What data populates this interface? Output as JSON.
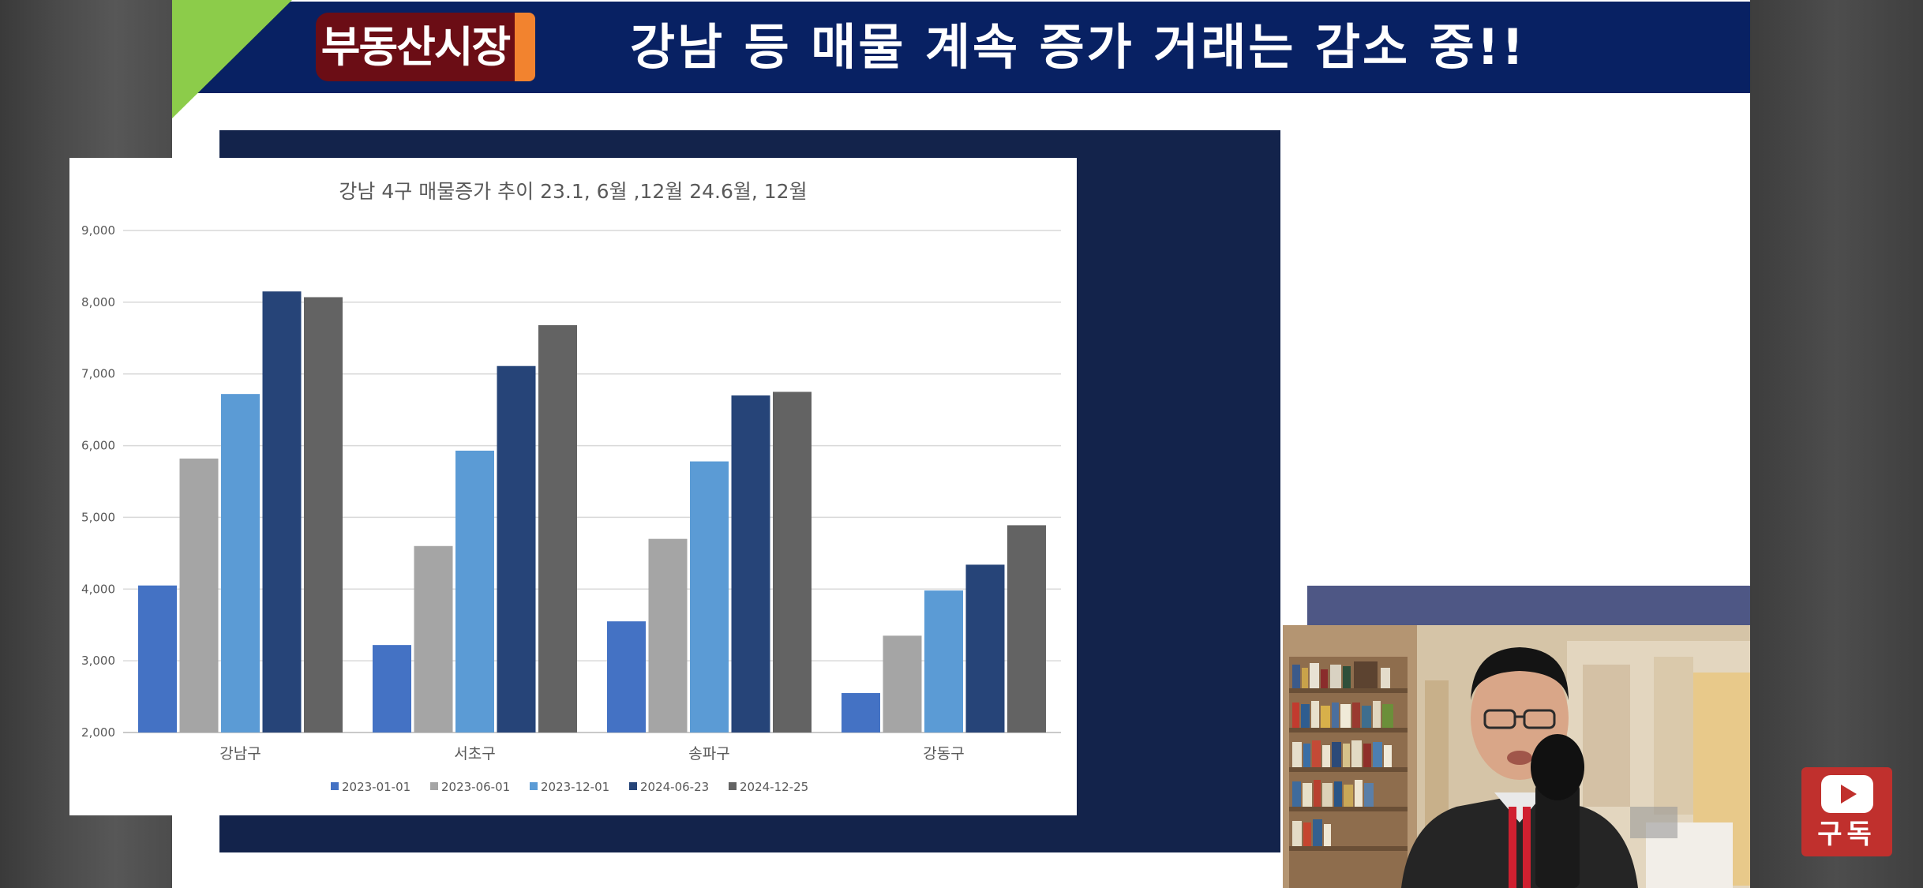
{
  "header": {
    "badge": "부동산시장",
    "headline": "강남 등 매물 계속 증가 거래는 감소 중!!"
  },
  "subscribe": {
    "label": "구독",
    "icon": "play-icon"
  },
  "colors": {
    "header_bg": "#082163",
    "badge_bg": "#6b0d15",
    "badge_accent": "#f2832f",
    "green_corner": "#8ccc4a",
    "chart_frame": "#13234b",
    "subscribe_bg": "#c0302d"
  },
  "chart_data": {
    "type": "bar",
    "title": "강남 4구 매물증가 추이 23.1, 6월 ,12월 24.6월, 12월",
    "categories": [
      "강남구",
      "서초구",
      "송파구",
      "강동구"
    ],
    "series": [
      {
        "name": "2023-01-01",
        "color": "#4472c4",
        "values": [
          4050,
          3220,
          3550,
          2550
        ]
      },
      {
        "name": "2023-06-01",
        "color": "#a5a5a5",
        "values": [
          5820,
          4600,
          4700,
          3350
        ]
      },
      {
        "name": "2023-12-01",
        "color": "#5b9bd5",
        "values": [
          6720,
          5930,
          5780,
          3980
        ]
      },
      {
        "name": "2024-06-23",
        "color": "#264478",
        "values": [
          8150,
          7110,
          6700,
          4340
        ]
      },
      {
        "name": "2024-12-25",
        "color": "#636363",
        "values": [
          8070,
          7680,
          6750,
          4890
        ]
      }
    ],
    "ylim": [
      2000,
      9000
    ],
    "yticks": [
      "2,000",
      "3,000",
      "4,000",
      "5,000",
      "6,000",
      "7,000",
      "8,000",
      "9,000"
    ],
    "grid": true,
    "legend_position": "bottom"
  }
}
